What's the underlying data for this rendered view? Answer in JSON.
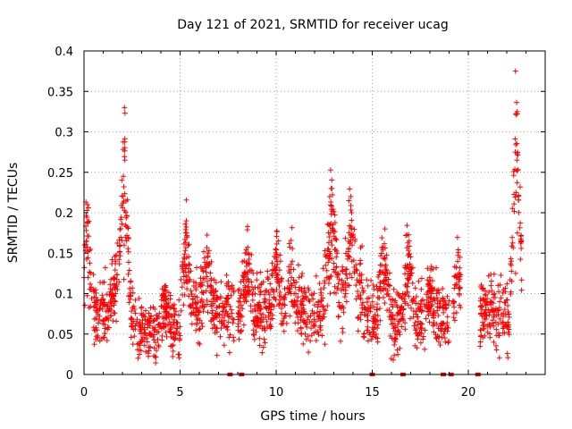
{
  "chart_data": {
    "type": "scatter",
    "title": "Day 121 of 2021, SRMTID for receiver ucag",
    "xlabel": "GPS time / hours",
    "ylabel": "SRMTID / TECUs",
    "xlim": [
      0,
      24
    ],
    "ylim": [
      0,
      0.4
    ],
    "grid": true,
    "marker": "+",
    "color": "#ff0000",
    "xticks": [
      0,
      5,
      10,
      15,
      20
    ],
    "xtick_labels": [
      "0",
      "5",
      "10",
      "15",
      "20"
    ],
    "yticks": [
      0,
      0.05,
      0.1,
      0.15,
      0.2,
      0.25,
      0.3,
      0.35,
      0.4
    ],
    "ytick_labels": [
      "0",
      "0.05",
      "0.1",
      "0.15",
      "0.2",
      "0.25",
      "0.3",
      "0.35",
      "0.4"
    ],
    "zero_value_markers_x": [
      7.6,
      8.2,
      15.0,
      16.6,
      18.7,
      19.1,
      20.5
    ],
    "series": [
      {
        "name": "SRMTID",
        "segments": [
          {
            "x_start": 0.0,
            "x_end": 2.7,
            "baseline": 0.075,
            "spread": 0.03,
            "peaks": [
              [
                0.15,
                0.21
              ],
              [
                1.6,
                0.14
              ],
              [
                2.1,
                0.33
              ]
            ]
          },
          {
            "x_start": 2.7,
            "x_end": 5.0,
            "baseline": 0.055,
            "spread": 0.025,
            "peaks": [
              [
                4.2,
                0.1
              ]
            ]
          },
          {
            "x_start": 5.0,
            "x_end": 7.8,
            "baseline": 0.08,
            "spread": 0.03,
            "peaks": [
              [
                5.3,
                0.19
              ],
              [
                6.4,
                0.15
              ]
            ]
          },
          {
            "x_start": 8.0,
            "x_end": 12.5,
            "baseline": 0.08,
            "spread": 0.03,
            "peaks": [
              [
                8.5,
                0.15
              ],
              [
                10.0,
                0.155
              ],
              [
                10.8,
                0.14
              ]
            ]
          },
          {
            "x_start": 12.5,
            "x_end": 14.5,
            "baseline": 0.1,
            "spread": 0.035,
            "peaks": [
              [
                12.9,
                0.23
              ],
              [
                13.9,
                0.22
              ]
            ]
          },
          {
            "x_start": 14.5,
            "x_end": 19.0,
            "baseline": 0.07,
            "spread": 0.03,
            "peaks": [
              [
                15.6,
                0.18
              ],
              [
                16.9,
                0.165
              ],
              [
                18.0,
                0.12
              ]
            ]
          },
          {
            "x_start": 19.2,
            "x_end": 19.6,
            "baseline": 0.09,
            "spread": 0.03,
            "peaks": [
              [
                19.5,
                0.14
              ]
            ]
          },
          {
            "x_start": 20.6,
            "x_end": 22.8,
            "baseline": 0.075,
            "spread": 0.03,
            "peaks": [
              [
                22.5,
                0.375
              ]
            ]
          }
        ]
      }
    ]
  }
}
